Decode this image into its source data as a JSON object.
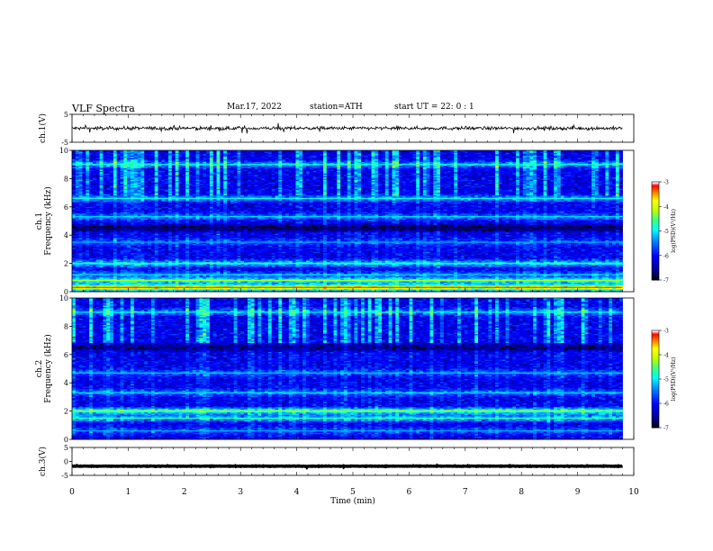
{
  "header": {
    "title": "VLF  Spectra",
    "date": "Mar.17, 2022",
    "station": "station=ATH",
    "start": "start  UT  =   22: 0  : 1"
  },
  "chart_data": [
    {
      "type": "line",
      "name": "ch1-waveform",
      "ylabel": "ch.1(V)",
      "ylim": [
        -5,
        5
      ],
      "yticks": [
        "5",
        "-5"
      ],
      "xlim": [
        0,
        10
      ],
      "description_values": "noisy waveform centered near 0 V, amplitude approx ±1 V",
      "mean": 0,
      "amplitude": 0.9,
      "line_color": "#000000"
    },
    {
      "type": "heatmap",
      "name": "ch1-spectrogram",
      "ylabel": "Frequency  (kHz)",
      "channel_label": "ch.1",
      "ylim": [
        0,
        10
      ],
      "yticks": [
        "0",
        "2",
        "4",
        "6",
        "8",
        "10"
      ],
      "xlim": [
        0,
        10
      ],
      "data_end_min": 9.8,
      "colorbar": {
        "label": "log(PSD)(V²/Hz)",
        "range": [
          -7,
          -3
        ],
        "ticks": [
          "-3",
          "-4",
          "-5",
          "-6",
          "-7"
        ]
      },
      "bands": [
        {
          "f": 0.3,
          "level": -3.6
        },
        {
          "f": 0.8,
          "level": -4.6
        },
        {
          "f": 1.2,
          "level": -5.4
        },
        {
          "f": 2.0,
          "level": -5.0
        },
        {
          "f": 3.5,
          "level": -5.6
        },
        {
          "f": 4.5,
          "level": -7.0
        },
        {
          "f": 5.3,
          "level": -5.4
        },
        {
          "f": 6.6,
          "level": -5.2
        },
        {
          "f": 9.0,
          "level": -5.2
        }
      ]
    },
    {
      "type": "heatmap",
      "name": "ch2-spectrogram",
      "ylabel": "Frequency  (kHz)",
      "channel_label": "ch.2",
      "ylim": [
        0,
        10
      ],
      "yticks": [
        "0",
        "2",
        "4",
        "6",
        "8",
        "10"
      ],
      "xlim": [
        0,
        10
      ],
      "data_end_min": 9.8,
      "colorbar": {
        "label": "log(PSD)(V²/Hz)",
        "range": [
          -7,
          -3
        ],
        "ticks": [
          "-3",
          "-4",
          "-5",
          "-6",
          "-7"
        ]
      },
      "bands": [
        {
          "f": 0.6,
          "level": -5.6
        },
        {
          "f": 1.5,
          "level": -5.0
        },
        {
          "f": 2.0,
          "level": -4.6
        },
        {
          "f": 3.3,
          "level": -5.4
        },
        {
          "f": 4.7,
          "level": -5.5
        },
        {
          "f": 6.5,
          "level": -6.8
        },
        {
          "f": 9.0,
          "level": -5.3
        }
      ]
    },
    {
      "type": "line",
      "name": "ch3-waveform",
      "ylabel": "ch.3(V)",
      "ylim": [
        -5,
        5
      ],
      "yticks": [
        "5",
        "0",
        "-5"
      ],
      "xlim": [
        0,
        10
      ],
      "mean": -1.7,
      "amplitude": 0.15,
      "line_color": "#000000"
    }
  ],
  "xaxis": {
    "label": "Time  (min)",
    "ticks": [
      "0",
      "1",
      "2",
      "3",
      "4",
      "5",
      "6",
      "7",
      "8",
      "9",
      "10"
    ]
  },
  "colors": {
    "colormap": [
      "#000000",
      "#00008f",
      "#0000ff",
      "#0080ff",
      "#00ffff",
      "#40ff80",
      "#c0ff00",
      "#ffff00",
      "#ff8000",
      "#ff0000",
      "#ffffff"
    ]
  }
}
